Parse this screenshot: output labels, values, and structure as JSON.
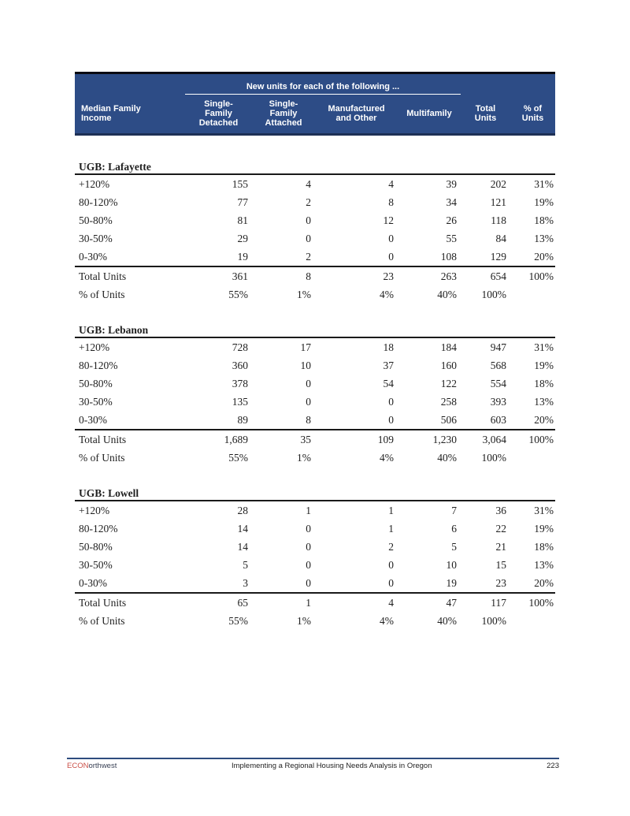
{
  "table": {
    "span_header": "New units for each of the following ...",
    "columns": [
      "Median Family\nIncome",
      "Single-\nFamily\nDetached",
      "Single-\nFamily\nAttached",
      "Manufactured\nand Other",
      "Multifamily",
      "Total\nUnits",
      "% of\nUnits"
    ],
    "sections": [
      {
        "title": "UGB: Lafayette",
        "rows": [
          [
            "+120%",
            "155",
            "4",
            "4",
            "39",
            "202",
            "31%"
          ],
          [
            "80-120%",
            "77",
            "2",
            "8",
            "34",
            "121",
            "19%"
          ],
          [
            "50-80%",
            "81",
            "0",
            "12",
            "26",
            "118",
            "18%"
          ],
          [
            "30-50%",
            "29",
            "0",
            "0",
            "55",
            "84",
            "13%"
          ],
          [
            "0-30%",
            "19",
            "2",
            "0",
            "108",
            "129",
            "20%"
          ]
        ],
        "total_row": [
          "Total Units",
          "361",
          "8",
          "23",
          "263",
          "654",
          "100%"
        ],
        "pct_row": [
          "% of Units",
          "55%",
          "1%",
          "4%",
          "40%",
          "100%",
          ""
        ]
      },
      {
        "title": "UGB: Lebanon",
        "rows": [
          [
            "+120%",
            "728",
            "17",
            "18",
            "184",
            "947",
            "31%"
          ],
          [
            "80-120%",
            "360",
            "10",
            "37",
            "160",
            "568",
            "19%"
          ],
          [
            "50-80%",
            "378",
            "0",
            "54",
            "122",
            "554",
            "18%"
          ],
          [
            "30-50%",
            "135",
            "0",
            "0",
            "258",
            "393",
            "13%"
          ],
          [
            "0-30%",
            "89",
            "8",
            "0",
            "506",
            "603",
            "20%"
          ]
        ],
        "total_row": [
          "Total Units",
          "1,689",
          "35",
          "109",
          "1,230",
          "3,064",
          "100%"
        ],
        "pct_row": [
          "% of Units",
          "55%",
          "1%",
          "4%",
          "40%",
          "100%",
          ""
        ]
      },
      {
        "title": "UGB: Lowell",
        "rows": [
          [
            "+120%",
            "28",
            "1",
            "1",
            "7",
            "36",
            "31%"
          ],
          [
            "80-120%",
            "14",
            "0",
            "1",
            "6",
            "22",
            "19%"
          ],
          [
            "50-80%",
            "14",
            "0",
            "2",
            "5",
            "21",
            "18%"
          ],
          [
            "30-50%",
            "5",
            "0",
            "0",
            "10",
            "15",
            "13%"
          ],
          [
            "0-30%",
            "3",
            "0",
            "0",
            "19",
            "23",
            "20%"
          ]
        ],
        "total_row": [
          "Total Units",
          "65",
          "1",
          "4",
          "47",
          "117",
          "100%"
        ],
        "pct_row": [
          "% of Units",
          "55%",
          "1%",
          "4%",
          "40%",
          "100%",
          ""
        ]
      }
    ]
  },
  "footer": {
    "brand_prefix": "ECON",
    "brand_suffix": "orthwest",
    "center_text": "Implementing a Regional Housing Needs Analysis in Oregon",
    "page_number": "223"
  },
  "colors": {
    "header_bg": "#2D4C86",
    "header_top_border": "#0B0B12",
    "header_bottom_border": "#1E3055",
    "rule": "#1A1A1A",
    "brand_red": "#CB4F47",
    "brand_dark": "#3A4256",
    "footer_line": "#2E4C7E"
  }
}
